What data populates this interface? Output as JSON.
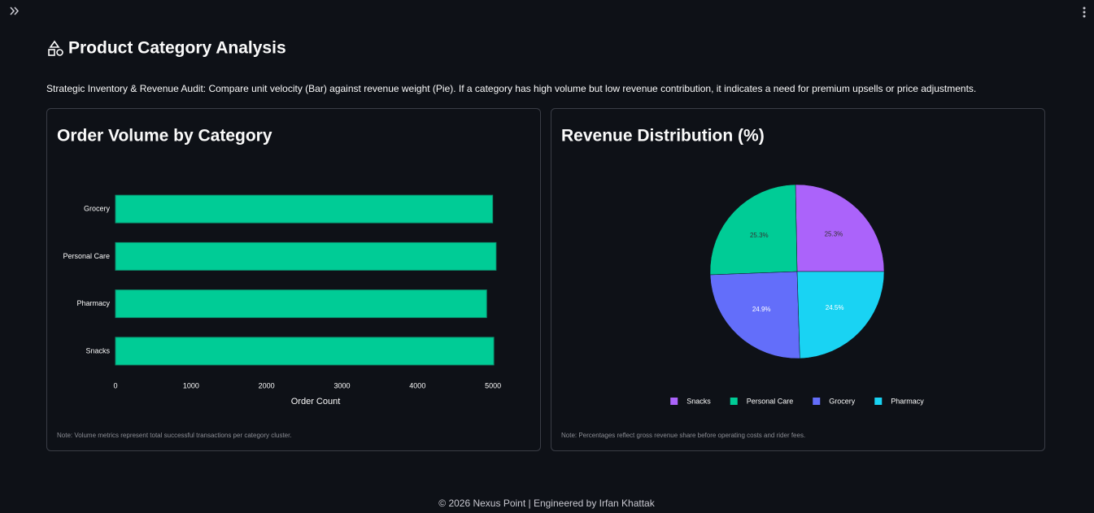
{
  "header": {
    "title": "Product Category Analysis",
    "description": "Strategic Inventory & Revenue Audit: Compare unit velocity (Bar) against revenue weight (Pie). If a category has high volume but low revenue contribution, it indicates a need for premium upsells or price adjustments."
  },
  "chart_data": [
    {
      "type": "bar",
      "orientation": "horizontal",
      "title": "Order Volume by Category",
      "categories": [
        "Grocery",
        "Personal Care",
        "Pharmacy",
        "Snacks"
      ],
      "values": [
        4995,
        5040,
        4915,
        5010
      ],
      "color": "#00cc96",
      "xlim": [
        0,
        5300
      ],
      "xticks": [
        0,
        1000,
        2000,
        3000,
        4000,
        5000
      ],
      "xlabel": "Order Count",
      "note": "Note: Volume metrics represent total successful transactions per category cluster."
    },
    {
      "type": "pie",
      "title": "Revenue Distribution (%)",
      "categories": [
        "Snacks",
        "Personal Care",
        "Grocery",
        "Pharmacy"
      ],
      "values": [
        25.3,
        25.3,
        24.9,
        24.5
      ],
      "value_labels": [
        "25.3%",
        "25.3%",
        "24.9%",
        "24.5%"
      ],
      "colors": [
        "#ab63fa",
        "#00cc96",
        "#636efa",
        "#19d3f3"
      ],
      "legend": "bottom",
      "note": "Note: Percentages reflect gross revenue share before operating costs and rider fees."
    }
  ],
  "footer": "© 2026 Nexus Point | Engineered by Irfan Khattak"
}
